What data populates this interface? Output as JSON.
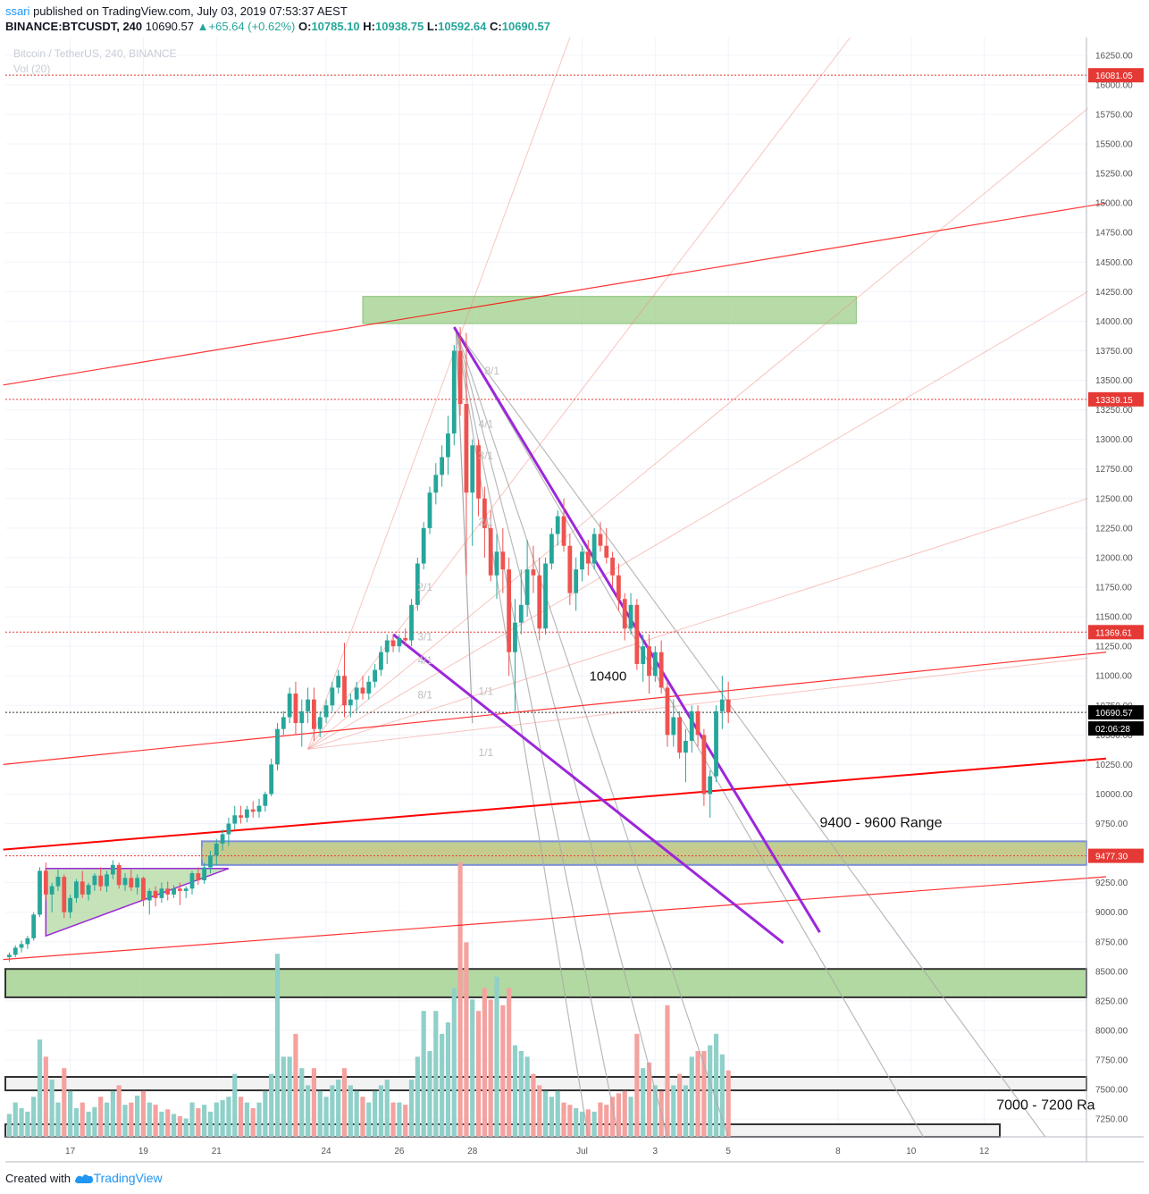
{
  "header": {
    "user": "ssari",
    "published_text": "published on TradingView.com, July 03, 2019 07:53:37 AEST",
    "symbol": "BINANCE:BTCUSDT, 240",
    "last": "10690.57",
    "change_arrow": "▲",
    "change": "+65.64 (+0.62%)",
    "o_label": "O:",
    "o": "10785.10",
    "h_label": "H:",
    "h": "10938.75",
    "l_label": "L:",
    "l": "10592.64",
    "c_label": "C:",
    "c": "10690.57"
  },
  "watermark": {
    "title": "Bitcoin / TetherUS, 240, BINANCE",
    "vol": "Vol (20)"
  },
  "footer": {
    "created_with": "Created with",
    "brand": "TradingView",
    "logo_icon": "tradingview-logo-icon"
  },
  "colors": {
    "up": "#26a69a",
    "down": "#ef5350",
    "vol_up": "#8fd0c9",
    "vol_down": "#f4a29f",
    "red_line": "#ff0000",
    "wedge": "#9c27d9",
    "zone_green": "#9fcf8a",
    "zone_border_blue": "#7b8fd6"
  },
  "chart_data": {
    "type": "candlestick",
    "symbol": "BINANCE:BTCUSDT",
    "interval": "240",
    "ylim": [
      7100,
      16400
    ],
    "y_ticks": [
      7250,
      7500,
      7750,
      8000,
      8250,
      8500,
      8750,
      9000,
      9250,
      9500,
      9750,
      10000,
      10250,
      10500,
      10750,
      11000,
      11250,
      11500,
      11750,
      12000,
      12250,
      12500,
      12750,
      13000,
      13250,
      13500,
      13750,
      14000,
      14250,
      14500,
      14750,
      15000,
      15250,
      15500,
      15750,
      16000,
      16250
    ],
    "x_ticks": [
      {
        "label": "17",
        "t": 10
      },
      {
        "label": "19",
        "t": 22
      },
      {
        "label": "21",
        "t": 34
      },
      {
        "label": "24",
        "t": 52
      },
      {
        "label": "26",
        "t": 64
      },
      {
        "label": "28",
        "t": 76
      },
      {
        "label": "Jul",
        "t": 94
      },
      {
        "label": "3",
        "t": 106
      },
      {
        "label": "5",
        "t": 118
      },
      {
        "label": "8",
        "t": 136
      },
      {
        "label": "10",
        "t": 148
      },
      {
        "label": "12",
        "t": 160
      }
    ],
    "price_tags": [
      {
        "value": 16081.05,
        "label": "16081.05",
        "style": "red"
      },
      {
        "value": 13339.15,
        "label": "13339.15",
        "style": "red"
      },
      {
        "value": 11369.61,
        "label": "11369.61",
        "style": "red"
      },
      {
        "value": 10690.57,
        "label": "10690.57",
        "style": "black"
      },
      {
        "value": 9477.3,
        "label": "9477.30",
        "style": "red"
      }
    ],
    "countdown": "02:06:28",
    "candles": [
      [
        8620,
        8660,
        8580,
        8640,
        20
      ],
      [
        8640,
        8720,
        8620,
        8700,
        30
      ],
      [
        8700,
        8760,
        8660,
        8730,
        25
      ],
      [
        8730,
        8800,
        8690,
        8780,
        22
      ],
      [
        8780,
        9000,
        8760,
        8980,
        35
      ],
      [
        8980,
        9380,
        8960,
        9350,
        85
      ],
      [
        9350,
        9420,
        9100,
        9150,
        70
      ],
      [
        9150,
        9250,
        9000,
        9220,
        50
      ],
      [
        9220,
        9360,
        9180,
        9300,
        30
      ],
      [
        9300,
        9320,
        8950,
        9000,
        60
      ],
      [
        9000,
        9150,
        8950,
        9120,
        40
      ],
      [
        9120,
        9280,
        9080,
        9260,
        25
      ],
      [
        9260,
        9350,
        9120,
        9150,
        30
      ],
      [
        9150,
        9250,
        9100,
        9230,
        22
      ],
      [
        9230,
        9330,
        9180,
        9310,
        26
      ],
      [
        9310,
        9380,
        9180,
        9220,
        35
      ],
      [
        9220,
        9350,
        9170,
        9320,
        30
      ],
      [
        9320,
        9440,
        9280,
        9400,
        40
      ],
      [
        9400,
        9420,
        9200,
        9230,
        45
      ],
      [
        9230,
        9330,
        9180,
        9290,
        28
      ],
      [
        9290,
        9360,
        9180,
        9210,
        30
      ],
      [
        9210,
        9320,
        9150,
        9290,
        36
      ],
      [
        9290,
        9300,
        9050,
        9100,
        40
      ],
      [
        9100,
        9200,
        8980,
        9180,
        30
      ],
      [
        9180,
        9220,
        9050,
        9120,
        28
      ],
      [
        9120,
        9250,
        9080,
        9200,
        22
      ],
      [
        9200,
        9260,
        9100,
        9150,
        24
      ],
      [
        9150,
        9230,
        9120,
        9200,
        20
      ],
      [
        9200,
        9250,
        9060,
        9180,
        18
      ],
      [
        9180,
        9220,
        9120,
        9200,
        16
      ],
      [
        9200,
        9350,
        9150,
        9330,
        30
      ],
      [
        9330,
        9380,
        9230,
        9270,
        25
      ],
      [
        9270,
        9420,
        9240,
        9380,
        28
      ],
      [
        9380,
        9520,
        9330,
        9480,
        22
      ],
      [
        9480,
        9620,
        9400,
        9580,
        30
      ],
      [
        9580,
        9700,
        9520,
        9660,
        32
      ],
      [
        9660,
        9800,
        9560,
        9750,
        35
      ],
      [
        9750,
        9900,
        9700,
        9820,
        55
      ],
      [
        9820,
        9900,
        9750,
        9800,
        35
      ],
      [
        9800,
        9900,
        9760,
        9870,
        30
      ],
      [
        9870,
        9940,
        9800,
        9850,
        25
      ],
      [
        9850,
        9960,
        9800,
        9900,
        30
      ],
      [
        9900,
        10020,
        9850,
        10000,
        40
      ],
      [
        10000,
        10300,
        9980,
        10250,
        55
      ],
      [
        10250,
        10600,
        10200,
        10550,
        160
      ],
      [
        10550,
        10700,
        10500,
        10650,
        70
      ],
      [
        10650,
        10900,
        10600,
        10850,
        70
      ],
      [
        10850,
        10950,
        10500,
        10600,
        90
      ],
      [
        10600,
        10800,
        10400,
        10700,
        60
      ],
      [
        10700,
        10900,
        10600,
        10800,
        45
      ],
      [
        10800,
        10900,
        10450,
        10550,
        60
      ],
      [
        10550,
        10700,
        10480,
        10650,
        40
      ],
      [
        10650,
        10800,
        10600,
        10750,
        35
      ],
      [
        10750,
        10950,
        10700,
        10900,
        45
      ],
      [
        10900,
        11050,
        10850,
        11000,
        50
      ],
      [
        11000,
        11280,
        10650,
        10750,
        60
      ],
      [
        10750,
        10850,
        10650,
        10800,
        45
      ],
      [
        10800,
        10950,
        10700,
        10900,
        40
      ],
      [
        10900,
        11000,
        10800,
        10850,
        35
      ],
      [
        10850,
        11000,
        10800,
        10950,
        30
      ],
      [
        10950,
        11100,
        10900,
        11050,
        40
      ],
      [
        11050,
        11250,
        11000,
        11200,
        45
      ],
      [
        11200,
        11350,
        11100,
        11300,
        50
      ],
      [
        11300,
        11350,
        11200,
        11250,
        30
      ],
      [
        11250,
        11350,
        11200,
        11320,
        30
      ],
      [
        11320,
        11400,
        11250,
        11300,
        28
      ],
      [
        11300,
        11650,
        11250,
        11600,
        50
      ],
      [
        11600,
        12000,
        11550,
        11950,
        70
      ],
      [
        11950,
        12300,
        11900,
        12250,
        110
      ],
      [
        12250,
        12600,
        12200,
        12550,
        75
      ],
      [
        12550,
        12800,
        12450,
        12700,
        110
      ],
      [
        12700,
        12950,
        12600,
        12850,
        90
      ],
      [
        12850,
        13200,
        12700,
        13050,
        100
      ],
      [
        13050,
        13800,
        12950,
        13750,
        130
      ],
      [
        13750,
        13950,
        13200,
        13300,
        240
      ],
      [
        13300,
        13900,
        11850,
        12550,
        170
      ],
      [
        12550,
        13000,
        12100,
        12950,
        120
      ],
      [
        12950,
        13000,
        12350,
        12500,
        110
      ],
      [
        12500,
        12600,
        12000,
        12250,
        130
      ],
      [
        12250,
        12400,
        11800,
        11850,
        120
      ],
      [
        11850,
        12200,
        11650,
        12050,
        140
      ],
      [
        12050,
        12250,
        11700,
        11900,
        115
      ],
      [
        11900,
        12000,
        11000,
        11200,
        130
      ],
      [
        11200,
        11650,
        10700,
        11450,
        80
      ],
      [
        11450,
        11900,
        11350,
        11600,
        75
      ],
      [
        11600,
        12150,
        11500,
        11900,
        70
      ],
      [
        11900,
        12100,
        11700,
        11850,
        55
      ],
      [
        11850,
        12000,
        11300,
        11400,
        45
      ],
      [
        11400,
        12000,
        11350,
        11950,
        40
      ],
      [
        11950,
        12250,
        11900,
        12200,
        35
      ],
      [
        12200,
        12400,
        12100,
        12350,
        40
      ],
      [
        12350,
        12500,
        12050,
        12100,
        30
      ],
      [
        12100,
        12200,
        11600,
        11700,
        28
      ],
      [
        11700,
        12000,
        11550,
        11900,
        25
      ],
      [
        11900,
        12100,
        11800,
        12050,
        22
      ],
      [
        12050,
        12150,
        11850,
        11950,
        24
      ],
      [
        11950,
        12250,
        11900,
        12200,
        22
      ],
      [
        12200,
        12300,
        12050,
        12100,
        30
      ],
      [
        12100,
        12250,
        11950,
        12000,
        28
      ],
      [
        12000,
        12050,
        11750,
        11850,
        35
      ],
      [
        11850,
        11950,
        11550,
        11650,
        38
      ],
      [
        11650,
        11700,
        11300,
        11400,
        40
      ],
      [
        11400,
        11700,
        11350,
        11600,
        35
      ],
      [
        11600,
        11650,
        11050,
        11100,
        90
      ],
      [
        11100,
        11350,
        10950,
        11250,
        60
      ],
      [
        11250,
        11350,
        10850,
        11000,
        65
      ],
      [
        11000,
        11250,
        10950,
        11200,
        45
      ],
      [
        11200,
        11300,
        10850,
        10900,
        40
      ],
      [
        10900,
        10950,
        10400,
        10500,
        115
      ],
      [
        10500,
        10800,
        10400,
        10650,
        45
      ],
      [
        10650,
        10700,
        10300,
        10350,
        55
      ],
      [
        10350,
        10550,
        10100,
        10450,
        45
      ],
      [
        10450,
        10750,
        10350,
        10700,
        70
      ],
      [
        10700,
        10750,
        10400,
        10500,
        75
      ],
      [
        10500,
        10550,
        9900,
        10000,
        75
      ],
      [
        10000,
        10200,
        9800,
        10150,
        80
      ],
      [
        10150,
        10750,
        10100,
        10700,
        90
      ],
      [
        10700,
        11000,
        10550,
        10800,
        72
      ],
      [
        10800,
        10950,
        10600,
        10690,
        58
      ]
    ],
    "lines": [
      {
        "name": "",
        "color": "#ff0000",
        "points": [
          [
            -1,
            13460
          ],
          [
            180,
            15000
          ]
        ]
      },
      {
        "name": "",
        "color": "#ff0000",
        "points": [
          [
            -1,
            10250
          ],
          [
            180,
            11200
          ]
        ]
      },
      {
        "name": "",
        "color": "#ff0000",
        "points": [
          [
            -1,
            9530
          ],
          [
            180,
            10300
          ]
        ]
      },
      {
        "name": "",
        "color": "#ff0000",
        "points": [
          [
            -1,
            8600
          ],
          [
            180,
            9300
          ]
        ]
      },
      {
        "name": "",
        "color": "#9c27d9",
        "points": [
          [
            73,
            13950
          ],
          [
            133,
            8830
          ]
        ]
      },
      {
        "name": "",
        "color": "#9c27d9",
        "points": [
          [
            63,
            11350
          ],
          [
            127,
            8740
          ]
        ]
      }
    ],
    "zones": [
      {
        "from_t": 58,
        "to_t": 139,
        "low": 13980,
        "high": 14210,
        "label": ""
      },
      {
        "from_t": -1,
        "to_t": 180,
        "low": 9400,
        "high": 9600,
        "label": "9400 - 9600 Range"
      },
      {
        "from_t": -1,
        "to_t": 180,
        "low": 8280,
        "high": 8520,
        "label": ""
      },
      {
        "from_t": -1,
        "to_t": 180,
        "low": 7000,
        "high": 7200,
        "label": "7000 - 7200 Ra"
      }
    ],
    "annotations": [
      {
        "text": "10400",
        "t": 99,
        "y": 10960
      },
      {
        "text": "9400 - 9600 Range",
        "t": 133,
        "y": 9720
      },
      {
        "text": "7000 - 7200 Ra",
        "t": 162,
        "y": 7330
      }
    ],
    "fan_labels": [
      "8/1",
      "4/1",
      "3/1",
      "2/1",
      "1/1",
      "2/1",
      "3/1",
      "4/1",
      "8/1",
      "1/1"
    ]
  }
}
